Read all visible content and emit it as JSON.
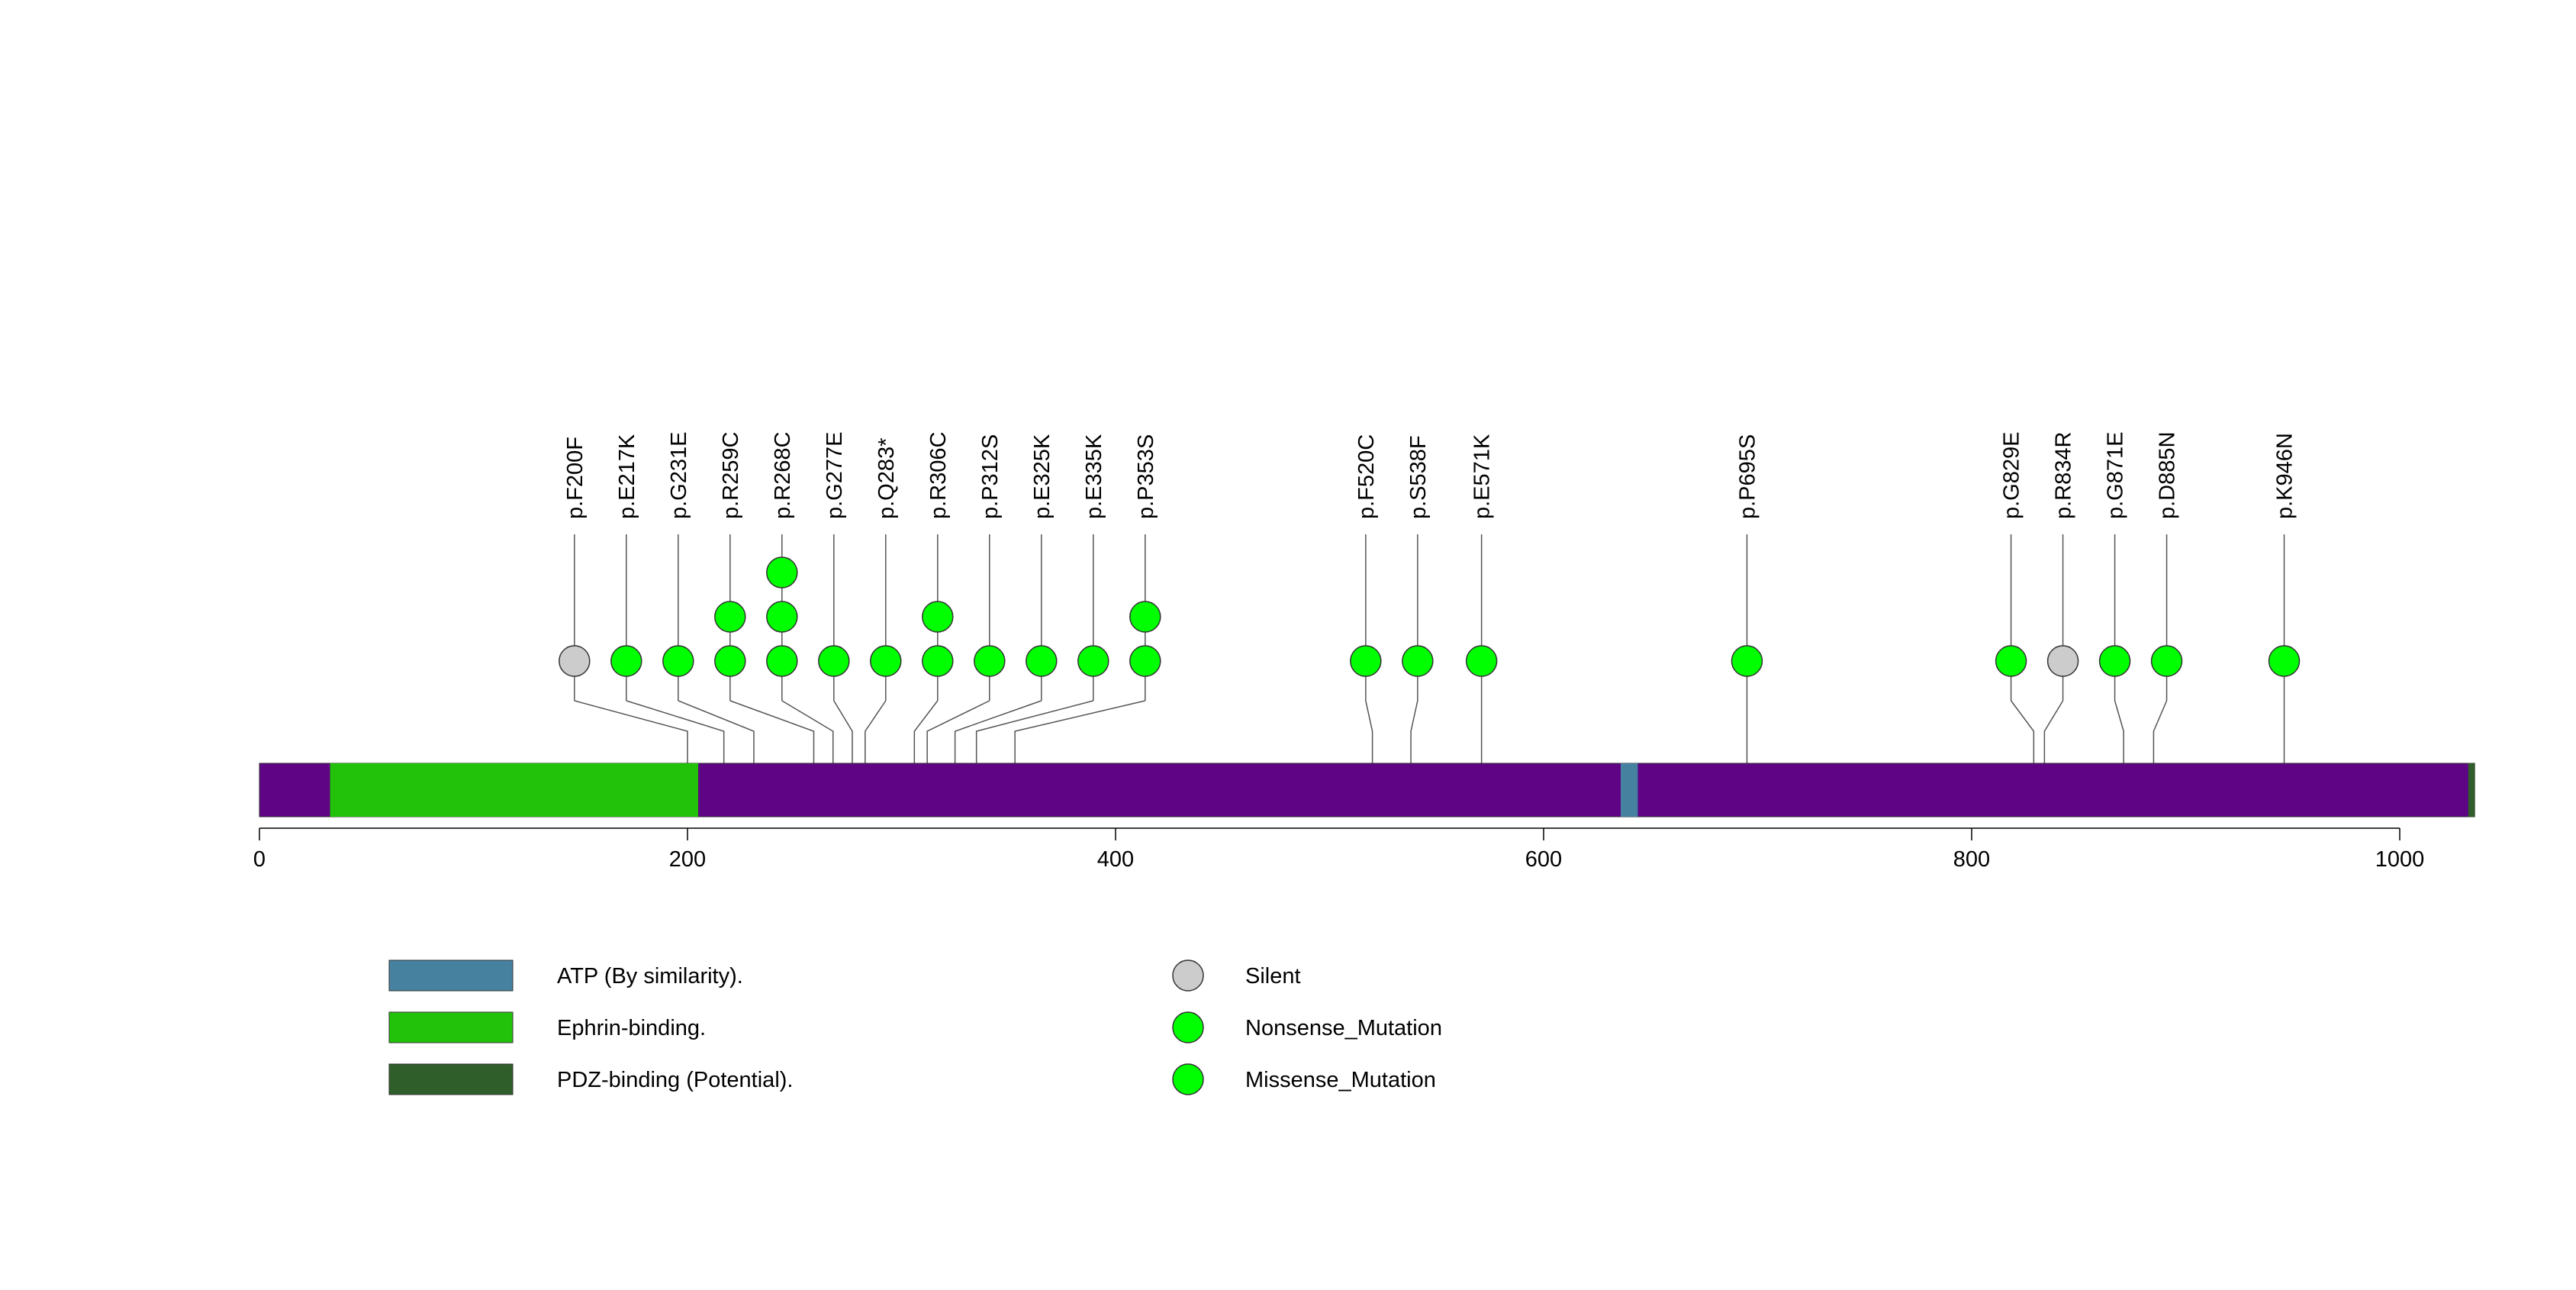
{
  "chart_data": {
    "type": "lollipop",
    "title": "",
    "protein_length": 1035,
    "x_axis": {
      "range": [
        0,
        1035
      ],
      "ticks": [
        0,
        200,
        400,
        600,
        800,
        1000
      ]
    },
    "domains": [
      {
        "name": "Ephrin-binding.",
        "start": 33,
        "end": 205,
        "color": "#22c10a"
      },
      {
        "name": "ATP (By similarity).",
        "start": 636,
        "end": 644,
        "color": "#4682a0"
      },
      {
        "name": "PDZ-binding (Potential).",
        "start": 1032,
        "end": 1035,
        "color": "#2f5e2a"
      }
    ],
    "protein_color": "#5e0485",
    "mutations": [
      {
        "label": "p.F200F",
        "position": 200,
        "type": "Silent",
        "count": 1
      },
      {
        "label": "p.E217K",
        "position": 217,
        "type": "Missense_Mutation",
        "count": 1
      },
      {
        "label": "p.G231E",
        "position": 231,
        "type": "Missense_Mutation",
        "count": 1
      },
      {
        "label": "p.R259C",
        "position": 259,
        "type": "Missense_Mutation",
        "count": 2
      },
      {
        "label": "p.R268C",
        "position": 268,
        "type": "Missense_Mutation",
        "count": 3
      },
      {
        "label": "p.G277E",
        "position": 277,
        "type": "Missense_Mutation",
        "count": 1
      },
      {
        "label": "p.Q283*",
        "position": 283,
        "type": "Nonsense_Mutation",
        "count": 1
      },
      {
        "label": "p.R306C",
        "position": 306,
        "type": "Missense_Mutation",
        "count": 2
      },
      {
        "label": "p.P312S",
        "position": 312,
        "type": "Missense_Mutation",
        "count": 1
      },
      {
        "label": "p.E325K",
        "position": 325,
        "type": "Missense_Mutation",
        "count": 1
      },
      {
        "label": "p.E335K",
        "position": 335,
        "type": "Missense_Mutation",
        "count": 1
      },
      {
        "label": "p.P353S",
        "position": 353,
        "type": "Missense_Mutation",
        "count": 2
      },
      {
        "label": "p.F520C",
        "position": 520,
        "type": "Missense_Mutation",
        "count": 1
      },
      {
        "label": "p.S538F",
        "position": 538,
        "type": "Missense_Mutation",
        "count": 1
      },
      {
        "label": "p.E571K",
        "position": 571,
        "type": "Missense_Mutation",
        "count": 1
      },
      {
        "label": "p.P695S",
        "position": 695,
        "type": "Missense_Mutation",
        "count": 1
      },
      {
        "label": "p.G829E",
        "position": 829,
        "type": "Missense_Mutation",
        "count": 1
      },
      {
        "label": "p.R834R",
        "position": 834,
        "type": "Silent",
        "count": 1
      },
      {
        "label": "p.G871E",
        "position": 871,
        "type": "Missense_Mutation",
        "count": 1
      },
      {
        "label": "p.D885N",
        "position": 885,
        "type": "Missense_Mutation",
        "count": 1
      },
      {
        "label": "p.K946N",
        "position": 946,
        "type": "Missense_Mutation",
        "count": 1
      }
    ],
    "mutation_type_colors": {
      "Silent": "#cccccc",
      "Nonsense_Mutation": "#00ff00",
      "Missense_Mutation": "#00ff00"
    },
    "legend": {
      "domains": [
        {
          "label": "ATP (By similarity).",
          "color": "#4682a0"
        },
        {
          "label": "Ephrin-binding.",
          "color": "#22c10a"
        },
        {
          "label": "PDZ-binding (Potential).",
          "color": "#2f5e2a"
        }
      ],
      "mutation_types": [
        {
          "label": "Silent",
          "color": "#cccccc"
        },
        {
          "label": "Nonsense_Mutation",
          "color": "#00ff00"
        },
        {
          "label": "Missense_Mutation",
          "color": "#00ff00"
        }
      ]
    }
  }
}
